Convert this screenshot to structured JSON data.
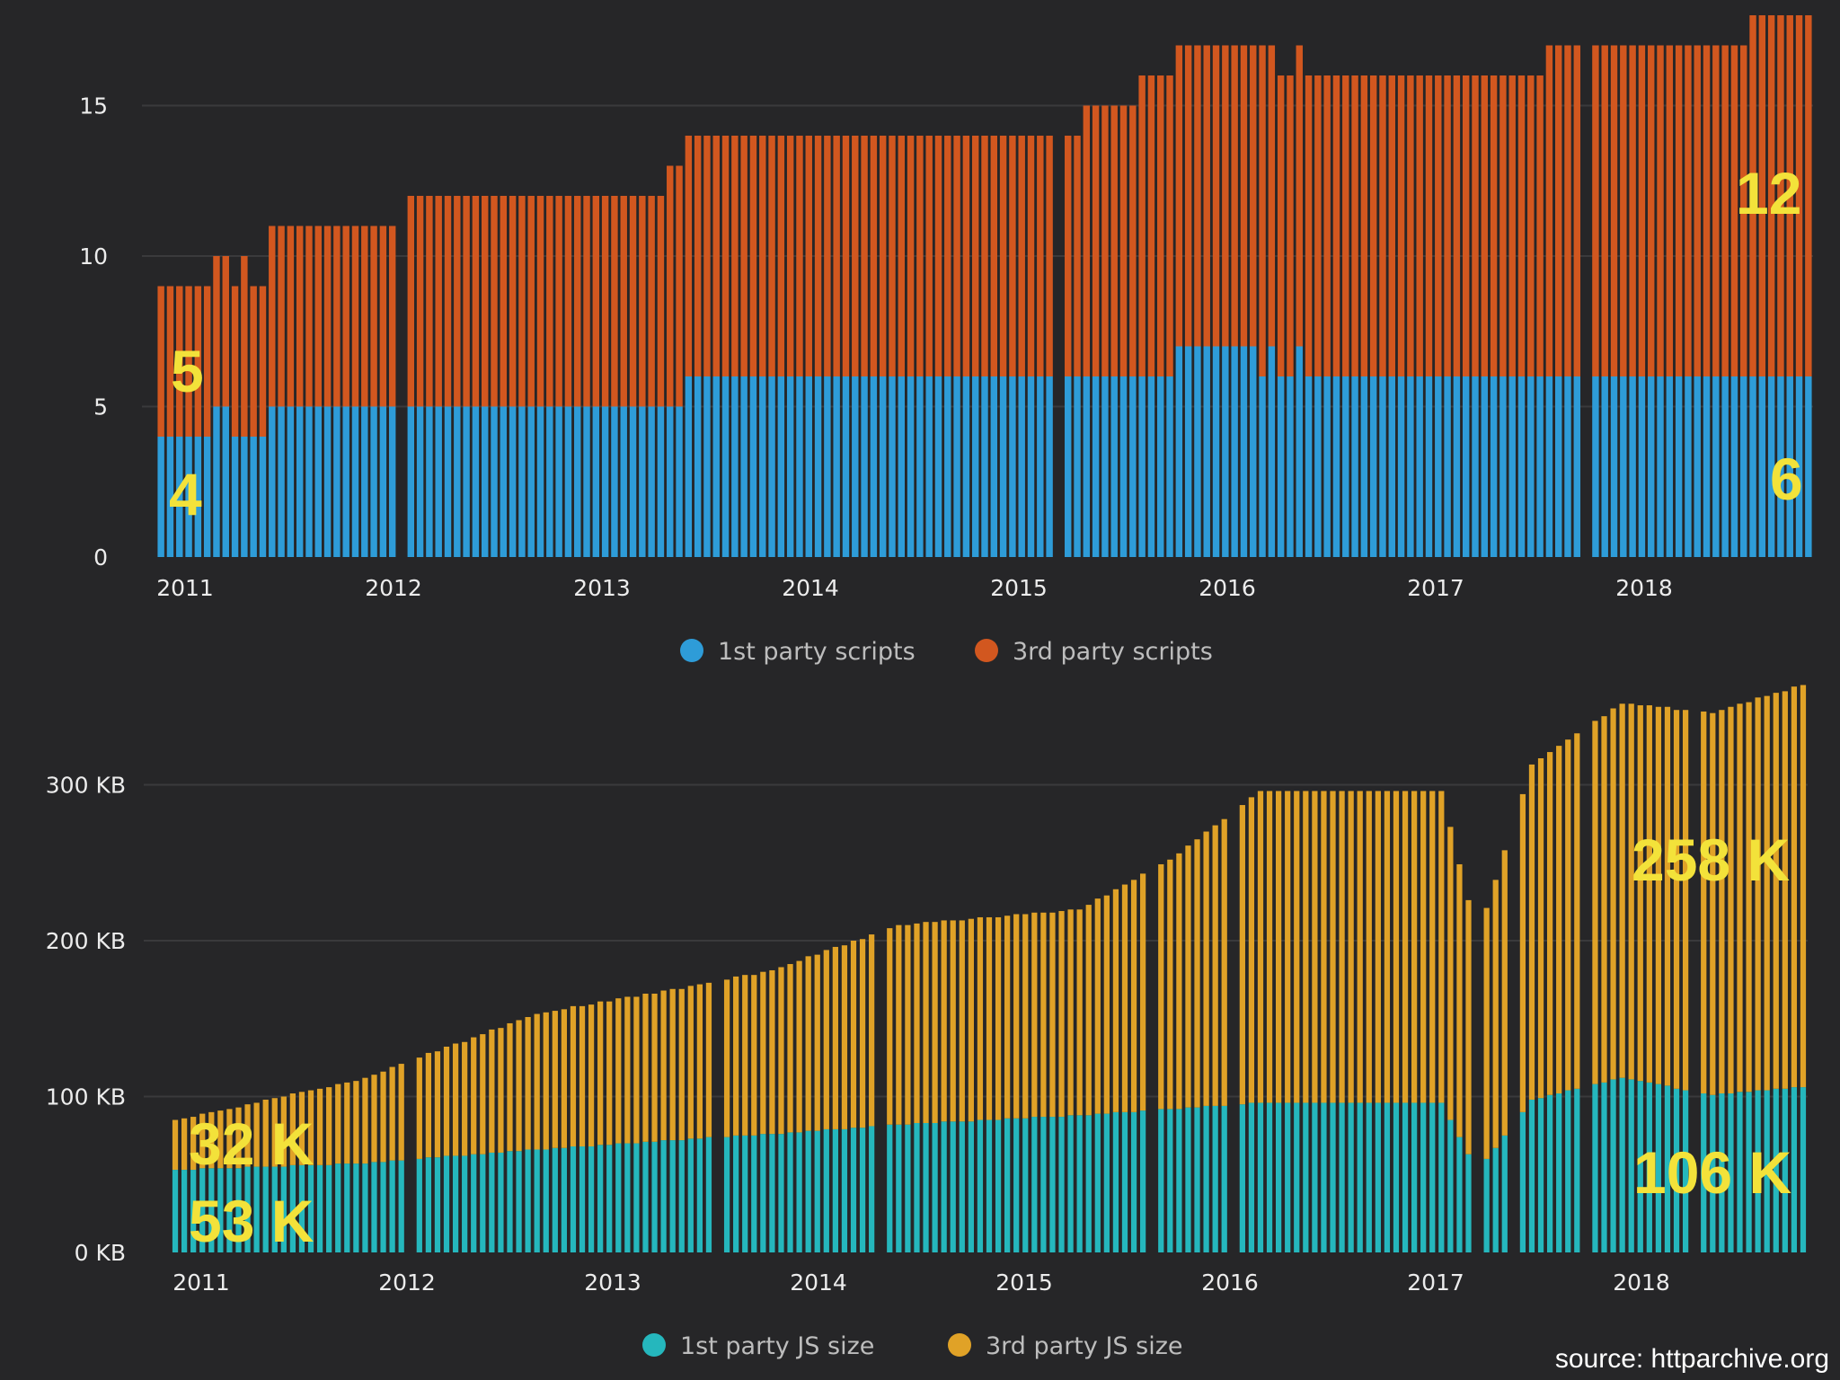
{
  "chart_data": [
    {
      "type": "bar",
      "stacked": true,
      "title": "",
      "xlabel": "",
      "ylabel": "",
      "ylim": [
        0,
        18
      ],
      "yticks": [
        0,
        5,
        10,
        15
      ],
      "ytick_labels": [
        "0",
        "5",
        "10",
        "15"
      ],
      "xtick_labels": [
        "2011",
        "2012",
        "2013",
        "2014",
        "2015",
        "2016",
        "2017",
        "2018"
      ],
      "grid": true,
      "legend_position": "bottom-center",
      "colors": {
        "first": "#2e9cd8",
        "third": "#d2571f"
      },
      "series": [
        {
          "name": "1st party scripts",
          "values": [
            4,
            4,
            4,
            4,
            4,
            4,
            5,
            5,
            4,
            4,
            4,
            4,
            5,
            5,
            5,
            5,
            5,
            5,
            5,
            5,
            5,
            5,
            5,
            5,
            5,
            5,
            5,
            5,
            5,
            5,
            5,
            5,
            5,
            5,
            5,
            5,
            5,
            5,
            5,
            5,
            5,
            5,
            5,
            5,
            5,
            5,
            5,
            5,
            5,
            5,
            5,
            5,
            5,
            5,
            5,
            5,
            5,
            6,
            6,
            6,
            6,
            6,
            6,
            6,
            6,
            6,
            6,
            6,
            6,
            6,
            6,
            6,
            6,
            6,
            6,
            6,
            6,
            6,
            6,
            6,
            6,
            6,
            6,
            6,
            6,
            6,
            6,
            6,
            6,
            6,
            6,
            6,
            6,
            6,
            6,
            6,
            6,
            6,
            6,
            6,
            6,
            6,
            6,
            6,
            6,
            6,
            6,
            6,
            6,
            6,
            7,
            7,
            7,
            7,
            7,
            7,
            7,
            7,
            7,
            6,
            7,
            6,
            6,
            7,
            6,
            6,
            6,
            6,
            6,
            6,
            6,
            6,
            6,
            6,
            6,
            6,
            6,
            6,
            6,
            6,
            6,
            6,
            6,
            6,
            6,
            6,
            6,
            6,
            6,
            6,
            6,
            6,
            6,
            6,
            6,
            6,
            6,
            6,
            6,
            6,
            6,
            6,
            6,
            6,
            6,
            6,
            6,
            6,
            6,
            6,
            6,
            6,
            6,
            6,
            6,
            6,
            6,
            6,
            6
          ]
        },
        {
          "name": "3rd party scripts",
          "values": [
            5,
            5,
            5,
            5,
            5,
            5,
            5,
            5,
            5,
            6,
            5,
            5,
            6,
            6,
            6,
            6,
            6,
            6,
            6,
            6,
            6,
            6,
            6,
            6,
            6,
            6,
            6,
            7,
            7,
            7,
            7,
            7,
            7,
            7,
            7,
            7,
            7,
            7,
            7,
            7,
            7,
            7,
            7,
            7,
            7,
            7,
            7,
            7,
            7,
            7,
            7,
            7,
            7,
            7,
            7,
            8,
            8,
            8,
            8,
            8,
            8,
            8,
            8,
            8,
            8,
            8,
            8,
            8,
            8,
            8,
            8,
            8,
            8,
            8,
            8,
            8,
            8,
            8,
            8,
            8,
            8,
            8,
            8,
            8,
            8,
            8,
            8,
            8,
            8,
            8,
            8,
            8,
            8,
            8,
            8,
            8,
            8,
            8,
            8,
            8,
            9,
            9,
            9,
            9,
            9,
            9,
            10,
            10,
            10,
            10,
            10,
            10,
            10,
            10,
            10,
            10,
            10,
            10,
            10,
            11,
            10,
            10,
            10,
            10,
            10,
            10,
            10,
            10,
            10,
            10,
            10,
            10,
            10,
            10,
            10,
            10,
            10,
            10,
            10,
            10,
            10,
            10,
            10,
            10,
            10,
            10,
            10,
            10,
            10,
            10,
            11,
            11,
            11,
            11,
            11,
            11,
            11,
            11,
            11,
            11,
            11,
            11,
            11,
            11,
            11,
            11,
            11,
            11,
            11,
            11,
            11,
            11,
            12,
            12,
            12,
            12,
            12,
            12,
            12,
            12
          ]
        }
      ],
      "annotations": {
        "first_start": "4",
        "third_start": "5",
        "first_end": "6",
        "third_end": "12"
      }
    },
    {
      "type": "bar",
      "stacked": true,
      "title": "",
      "xlabel": "",
      "ylabel": "",
      "ylim": [
        0,
        380
      ],
      "yticks": [
        0,
        100,
        200,
        300
      ],
      "ytick_labels": [
        "0 KB",
        "100 KB",
        "200 KB",
        "300 KB"
      ],
      "xtick_labels": [
        "2011",
        "2012",
        "2013",
        "2014",
        "2015",
        "2016",
        "2017",
        "2018"
      ],
      "grid": true,
      "legend_position": "bottom-center",
      "colors": {
        "first": "#25b7bd",
        "third": "#e0a227"
      },
      "series": [
        {
          "name": "1st party JS size",
          "anchors": [
            [
              0,
              53
            ],
            [
              20,
              57
            ],
            [
              40,
              66
            ],
            [
              60,
              74
            ],
            [
              66,
              76
            ],
            [
              80,
              82
            ],
            [
              100,
              88
            ],
            [
              110,
              92
            ],
            [
              120,
              96
            ],
            [
              140,
              96
            ],
            [
              144,
              52
            ],
            [
              150,
              98
            ],
            [
              160,
              112
            ],
            [
              170,
              101
            ],
            [
              180,
              106
            ]
          ]
        },
        {
          "name": "3rd party JS size",
          "anchors": [
            [
              0,
              32
            ],
            [
              20,
              53
            ],
            [
              40,
              87
            ],
            [
              60,
              100
            ],
            [
              66,
              105
            ],
            [
              80,
              128
            ],
            [
              100,
              132
            ],
            [
              110,
              160
            ],
            [
              120,
              200
            ],
            [
              140,
              200
            ],
            [
              144,
              150
            ],
            [
              150,
              215
            ],
            [
              160,
              240
            ],
            [
              170,
              245
            ],
            [
              180,
              258
            ]
          ]
        }
      ],
      "annotations": {
        "third_start": "32 K",
        "first_start": "53 K",
        "third_end": "258 K",
        "first_end": "106 K"
      }
    }
  ],
  "source": "source: httparchive.org"
}
